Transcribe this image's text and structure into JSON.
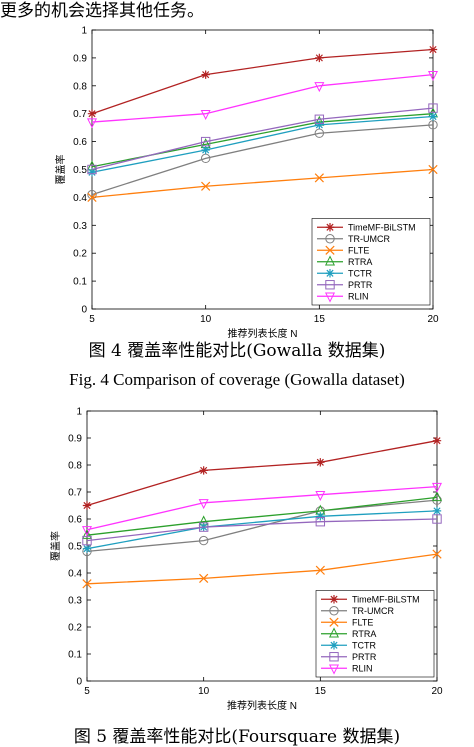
{
  "top_text": "更多的机会选择其他任务。",
  "fig4": {
    "caption_cn": "图 4 覆盖率性能对比(Gowalla 数据集)",
    "caption_en": "Fig. 4    Comparison of coverage (Gowalla dataset)"
  },
  "fig5": {
    "caption_cn": "图 5 覆盖率性能对比(Foursquare 数据集)"
  },
  "chart_data": [
    {
      "type": "line",
      "title": "",
      "xlabel": "推荐列表长度 N",
      "ylabel": "覆盖率",
      "x": [
        5,
        10,
        15,
        20
      ],
      "xlim": [
        5,
        20
      ],
      "ylim": [
        0,
        1
      ],
      "yticks": [
        "0",
        "0.1",
        "0.2",
        "0.3",
        "0.4",
        "0.5",
        "0.6",
        "0.7",
        "0.8",
        "0.9",
        "1"
      ],
      "xticks": [
        "5",
        "10",
        "15",
        "20"
      ],
      "grid": false,
      "legend_position": "bottom-right",
      "series": [
        {
          "name": "TimeMF-BiLSTM",
          "values": [
            0.7,
            0.84,
            0.9,
            0.93
          ],
          "color": "#b22222",
          "marker": "star"
        },
        {
          "name": "TR-UMCR",
          "values": [
            0.41,
            0.54,
            0.63,
            0.66
          ],
          "color": "#7f7f7f",
          "marker": "circle"
        },
        {
          "name": "FLTE",
          "values": [
            0.4,
            0.44,
            0.47,
            0.5
          ],
          "color": "#ff7f0e",
          "marker": "x"
        },
        {
          "name": "RTRA",
          "values": [
            0.51,
            0.59,
            0.67,
            0.7
          ],
          "color": "#2ca02c",
          "marker": "triangle"
        },
        {
          "name": "TCTR",
          "values": [
            0.49,
            0.57,
            0.66,
            0.69
          ],
          "color": "#1f9fbf",
          "marker": "star"
        },
        {
          "name": "PRTR",
          "values": [
            0.5,
            0.6,
            0.68,
            0.72
          ],
          "color": "#9467bd",
          "marker": "square"
        },
        {
          "name": "RLIN",
          "values": [
            0.67,
            0.7,
            0.8,
            0.84
          ],
          "color": "#ff33ff",
          "marker": "triangle-down"
        }
      ]
    },
    {
      "type": "line",
      "title": "",
      "xlabel": "推荐列表长度 N",
      "ylabel": "覆盖率",
      "x": [
        5,
        10,
        15,
        20
      ],
      "xlim": [
        5,
        20
      ],
      "ylim": [
        0,
        1
      ],
      "yticks": [
        "0",
        "0.1",
        "0.2",
        "0.3",
        "0.4",
        "0.5",
        "0.6",
        "0.7",
        "0.8",
        "0.9",
        "1"
      ],
      "xticks": [
        "5",
        "10",
        "15",
        "20"
      ],
      "grid": false,
      "legend_position": "bottom-right",
      "series": [
        {
          "name": "TimeMF-BiLSTM",
          "values": [
            0.65,
            0.78,
            0.81,
            0.89
          ],
          "color": "#b22222",
          "marker": "star"
        },
        {
          "name": "TR-UMCR",
          "values": [
            0.48,
            0.52,
            0.63,
            0.67
          ],
          "color": "#7f7f7f",
          "marker": "circle"
        },
        {
          "name": "FLTE",
          "values": [
            0.36,
            0.38,
            0.41,
            0.47
          ],
          "color": "#ff7f0e",
          "marker": "x"
        },
        {
          "name": "RTRA",
          "values": [
            0.54,
            0.59,
            0.63,
            0.68
          ],
          "color": "#2ca02c",
          "marker": "triangle"
        },
        {
          "name": "TCTR",
          "values": [
            0.49,
            0.57,
            0.61,
            0.63
          ],
          "color": "#1f9fbf",
          "marker": "star"
        },
        {
          "name": "PRTR",
          "values": [
            0.52,
            0.57,
            0.59,
            0.6
          ],
          "color": "#9467bd",
          "marker": "square"
        },
        {
          "name": "RLIN",
          "values": [
            0.56,
            0.66,
            0.69,
            0.72
          ],
          "color": "#ff33ff",
          "marker": "triangle-down"
        }
      ]
    }
  ]
}
